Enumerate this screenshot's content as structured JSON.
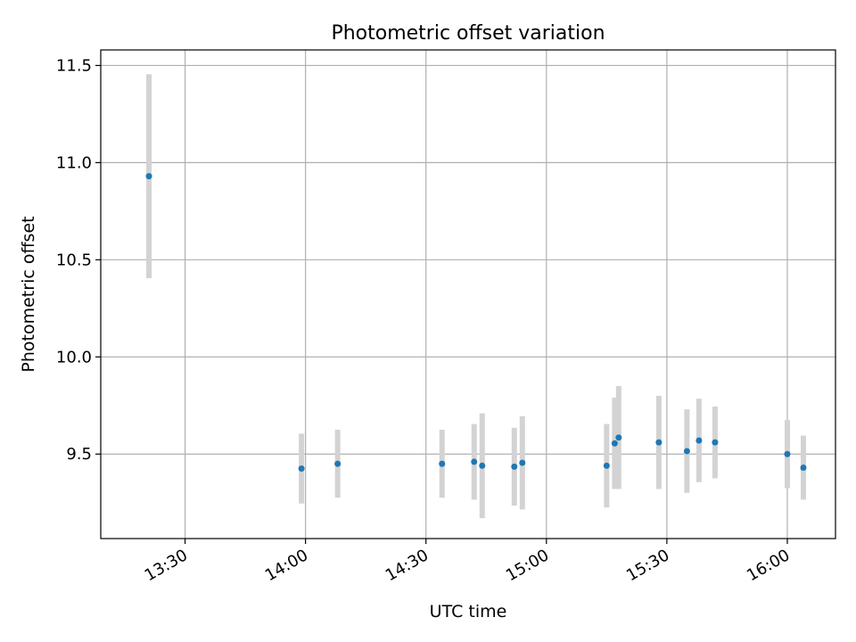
{
  "chart_data": {
    "type": "scatter",
    "title": "Photometric offset variation",
    "xlabel": "UTC time",
    "ylabel": "Photometric offset",
    "x_axis": {
      "kind": "time",
      "range": [
        "13:09",
        "16:12"
      ],
      "ticks": [
        "13:30",
        "14:00",
        "14:30",
        "15:00",
        "15:30",
        "16:00"
      ]
    },
    "y_axis": {
      "range": [
        9.065,
        11.58
      ],
      "ticks": [
        9.5,
        10.0,
        10.5,
        11.0,
        11.5
      ],
      "tick_labels": [
        "9.5",
        "10.0",
        "10.5",
        "11.0",
        "11.5"
      ]
    },
    "grid": true,
    "series": [
      {
        "marker_color": "#1f77b4",
        "error_bar_color": "#d3d3d3",
        "points": [
          {
            "x": "13:21",
            "y": 10.93,
            "err": 0.525
          },
          {
            "x": "13:59",
            "y": 9.425,
            "err": 0.18
          },
          {
            "x": "14:08",
            "y": 9.45,
            "err": 0.175
          },
          {
            "x": "14:34",
            "y": 9.45,
            "err": 0.175
          },
          {
            "x": "14:42",
            "y": 9.46,
            "err": 0.195
          },
          {
            "x": "14:44",
            "y": 9.44,
            "err": 0.27
          },
          {
            "x": "14:52",
            "y": 9.435,
            "err": 0.2
          },
          {
            "x": "14:54",
            "y": 9.455,
            "err": 0.24
          },
          {
            "x": "15:15",
            "y": 9.44,
            "err": 0.215
          },
          {
            "x": "15:17",
            "y": 9.555,
            "err": 0.235
          },
          {
            "x": "15:18",
            "y": 9.585,
            "err": 0.265
          },
          {
            "x": "15:28",
            "y": 9.56,
            "err": 0.24
          },
          {
            "x": "15:35",
            "y": 9.515,
            "err": 0.215
          },
          {
            "x": "15:38",
            "y": 9.57,
            "err": 0.215
          },
          {
            "x": "15:42",
            "y": 9.56,
            "err": 0.185
          },
          {
            "x": "16:00",
            "y": 9.5,
            "err": 0.175
          },
          {
            "x": "16:04",
            "y": 9.43,
            "err": 0.165
          }
        ]
      }
    ]
  }
}
